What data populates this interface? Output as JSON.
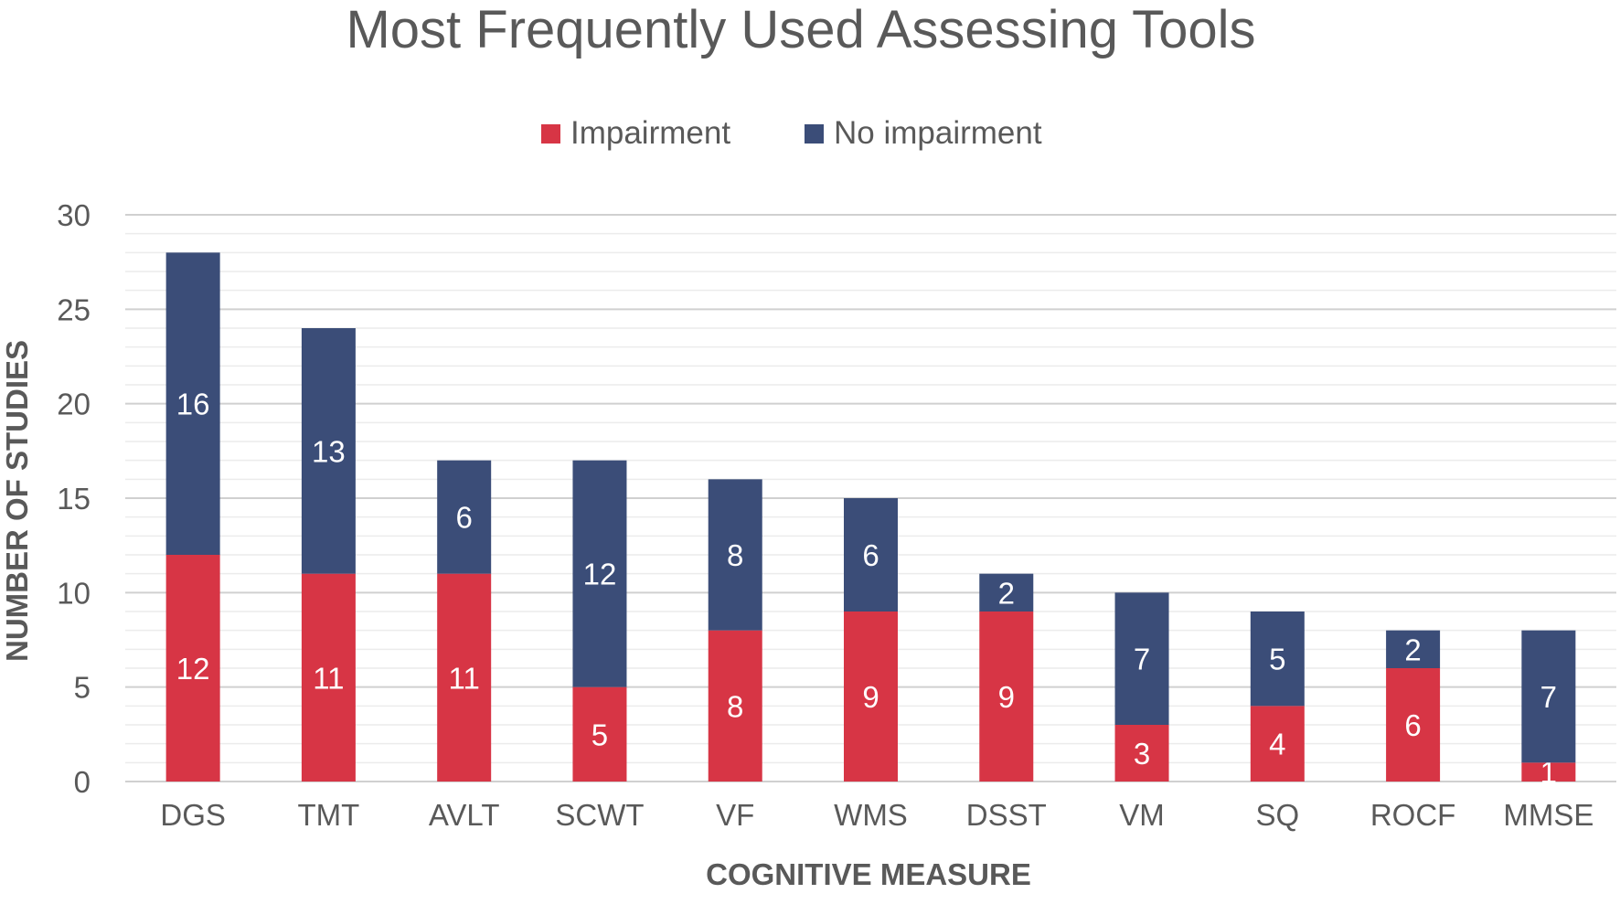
{
  "chart_data": {
    "type": "bar",
    "stacked": true,
    "title": "Most Frequently Used Assessing Tools",
    "xlabel": "COGNITIVE MEASURE",
    "ylabel": "NUMBER OF STUDIES",
    "ylim": [
      0,
      30
    ],
    "yticks": [
      0,
      5,
      10,
      15,
      20,
      25,
      30
    ],
    "minor_gridlines": true,
    "legend_position": "top-center",
    "categories": [
      "DGS",
      "TMT",
      "AVLT",
      "SCWT",
      "VF",
      "WMS",
      "DSST",
      "VM",
      "SQ",
      "ROCF",
      "MMSE"
    ],
    "series": [
      {
        "name": "Impairment",
        "color": "#d73545",
        "values": [
          12,
          11,
          11,
          5,
          8,
          9,
          9,
          3,
          4,
          6,
          1
        ]
      },
      {
        "name": "No impairment",
        "color": "#3b4d78",
        "values": [
          16,
          13,
          6,
          12,
          8,
          6,
          2,
          7,
          5,
          2,
          7
        ]
      }
    ]
  }
}
